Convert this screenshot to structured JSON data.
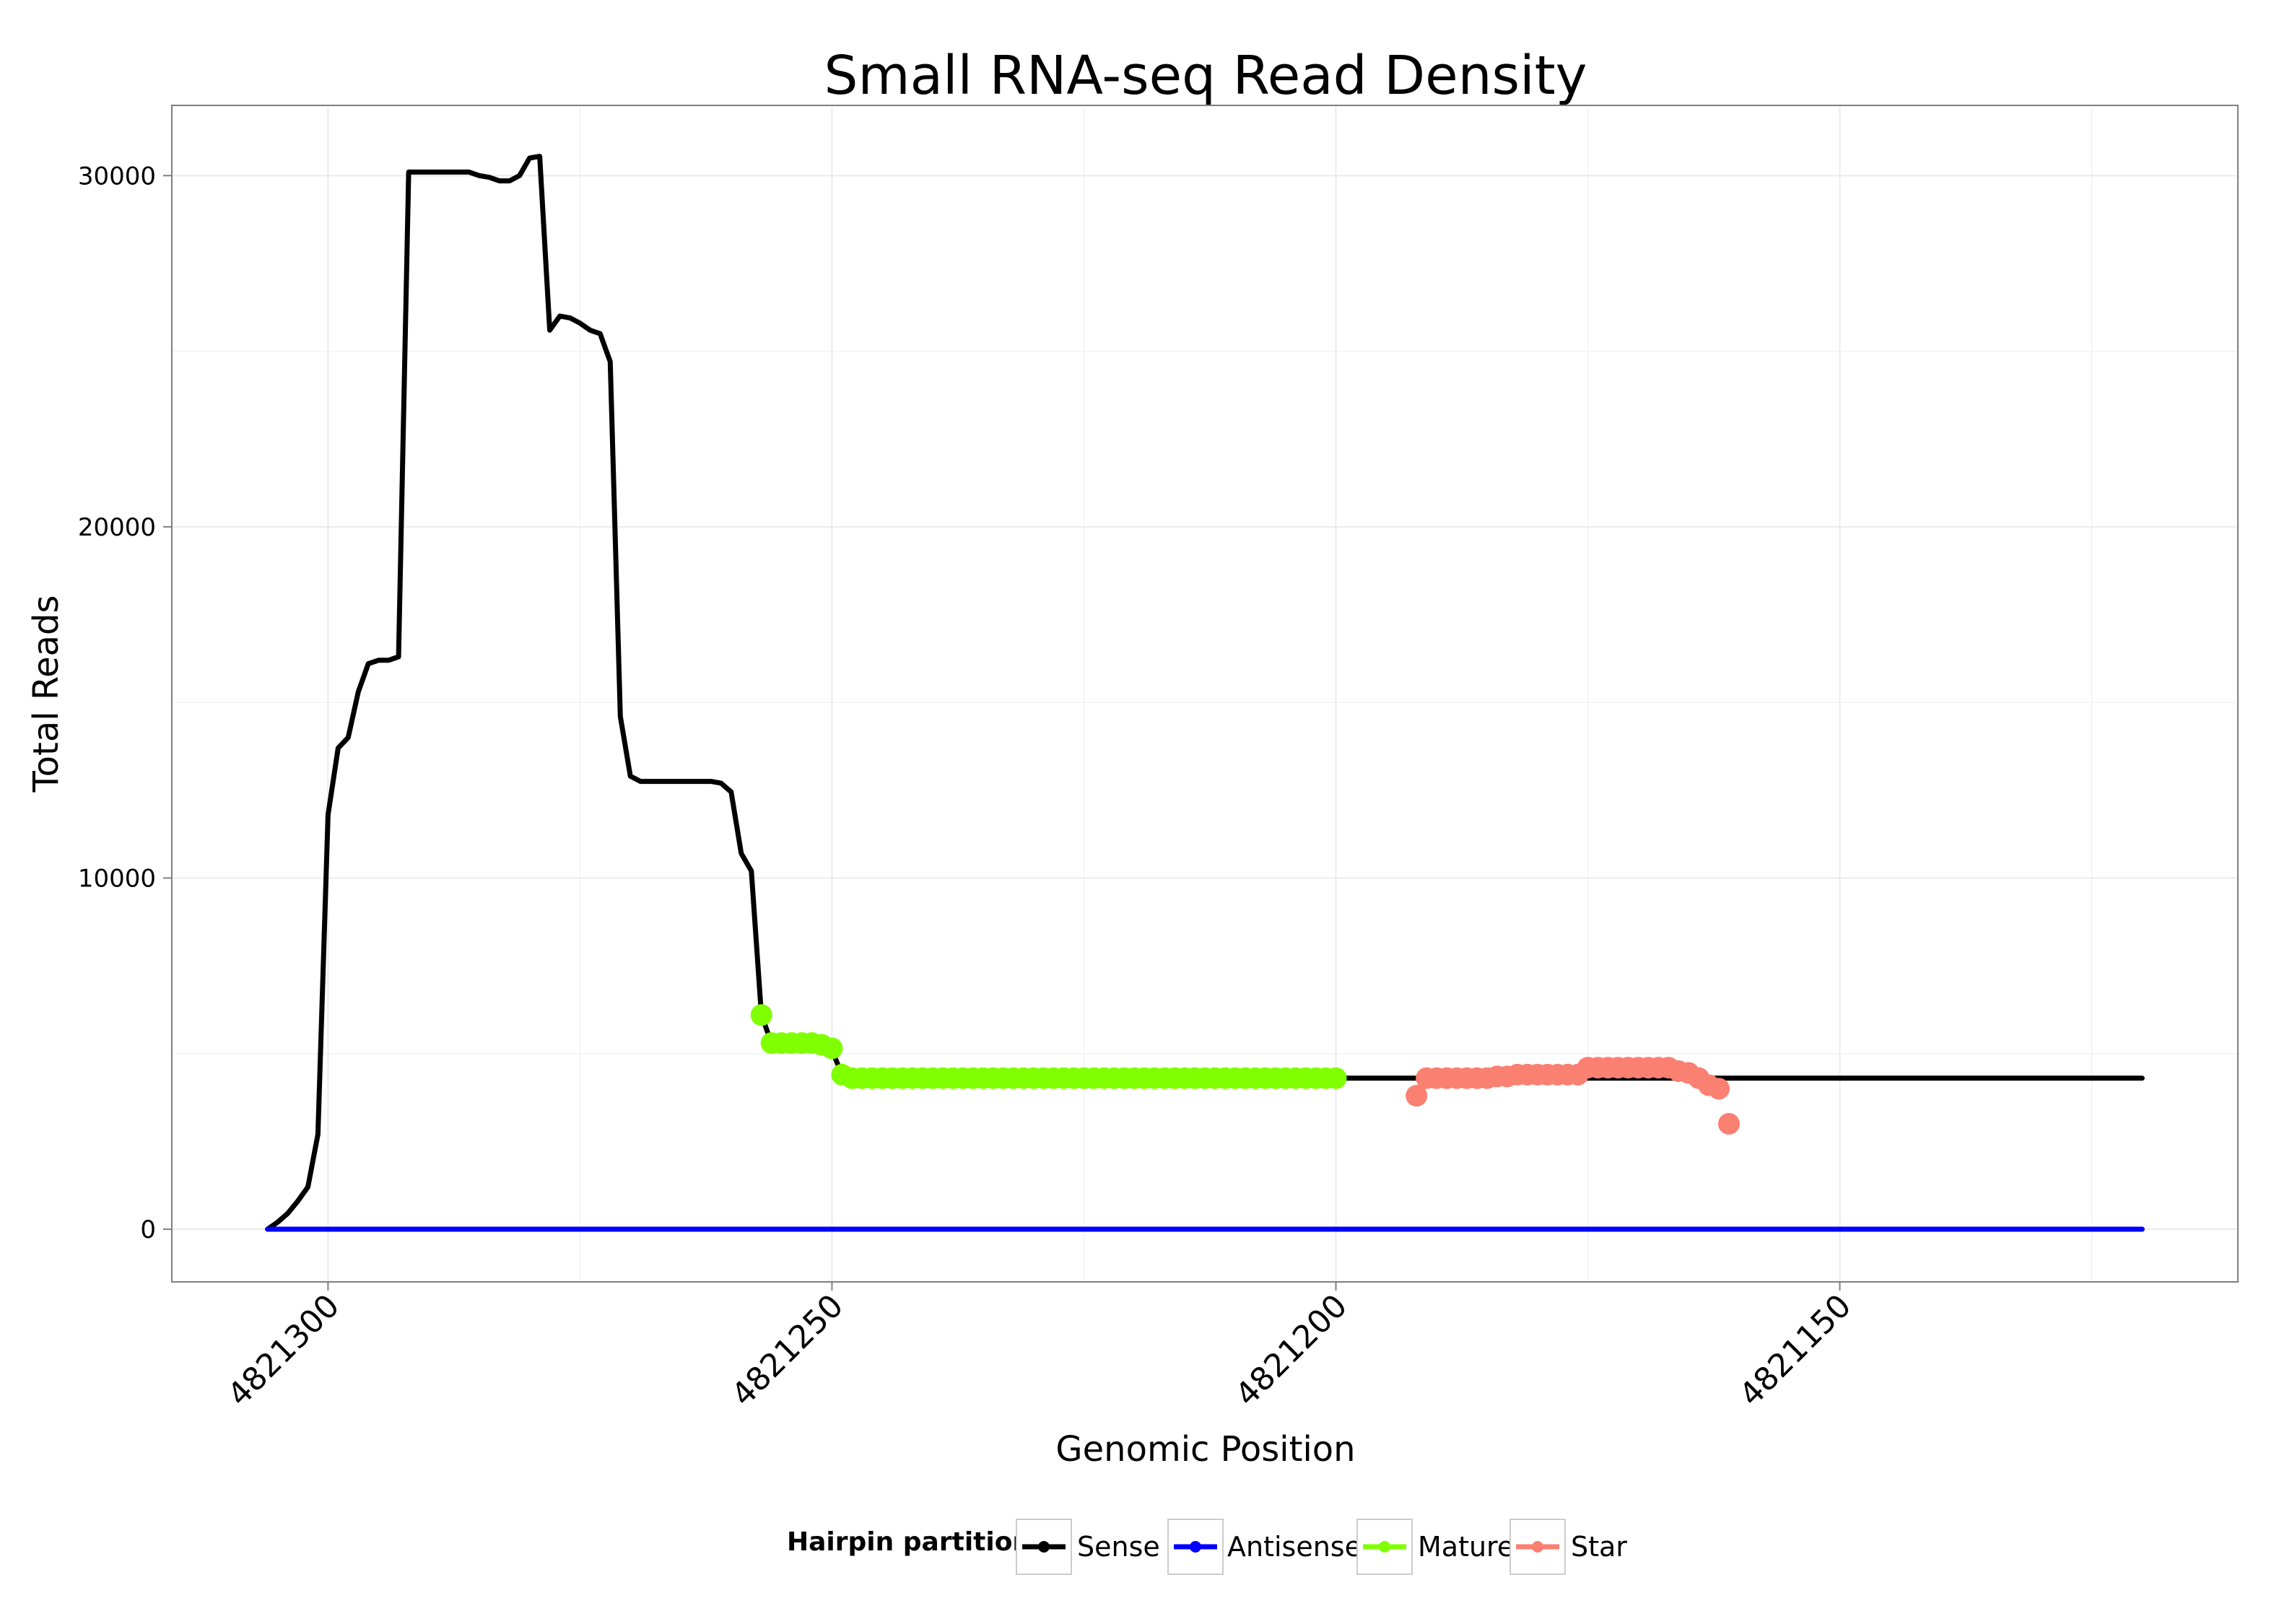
{
  "chart_data": {
    "type": "line",
    "title": "Small RNA-seq Read Density",
    "xlabel": "Genomic Position",
    "ylabel": "Total Reads",
    "xlim": [
      4821315.5,
      4821110.5
    ],
    "ylim": [
      -1500,
      32000
    ],
    "x_reversed": true,
    "x_ticks": [
      4821300,
      4821250,
      4821200,
      4821150
    ],
    "x_tick_labels": [
      "4821300",
      "4821250",
      "4821200",
      "4821150"
    ],
    "y_ticks": [
      0,
      10000,
      20000,
      30000
    ],
    "y_tick_labels": [
      "0",
      "10000",
      "20000",
      "30000"
    ],
    "grid": true,
    "legend": {
      "title": "Hairpin partition",
      "position": "bottom",
      "entries": [
        {
          "name": "Sense",
          "color": "#000000"
        },
        {
          "name": "Antisense",
          "color": "#0000ff"
        },
        {
          "name": "Mature",
          "color": "#7fff00"
        },
        {
          "name": "Star",
          "color": "#fa8072"
        }
      ]
    },
    "series": [
      {
        "name": "Sense",
        "color": "#000000",
        "kind": "line",
        "points": [
          [
            4821306,
            0
          ],
          [
            4821305,
            200
          ],
          [
            4821304,
            450
          ],
          [
            4821303,
            800
          ],
          [
            4821302,
            1200
          ],
          [
            4821301,
            2700
          ],
          [
            4821300,
            11800
          ],
          [
            4821299,
            13700
          ],
          [
            4821298,
            14000
          ],
          [
            4821297,
            15300
          ],
          [
            4821296,
            16100
          ],
          [
            4821295,
            16200
          ],
          [
            4821294,
            16200
          ],
          [
            4821293,
            16300
          ],
          [
            4821292,
            30100
          ],
          [
            4821291,
            30100
          ],
          [
            4821290,
            30100
          ],
          [
            4821289,
            30100
          ],
          [
            4821288,
            30100
          ],
          [
            4821287,
            30100
          ],
          [
            4821286,
            30100
          ],
          [
            4821285,
            30000
          ],
          [
            4821284,
            29950
          ],
          [
            4821283,
            29850
          ],
          [
            4821282,
            29850
          ],
          [
            4821281,
            30000
          ],
          [
            4821280,
            30500
          ],
          [
            4821279,
            30550
          ],
          [
            4821278,
            25600
          ],
          [
            4821277,
            26000
          ],
          [
            4821276,
            25950
          ],
          [
            4821275,
            25800
          ],
          [
            4821274,
            25600
          ],
          [
            4821273,
            25500
          ],
          [
            4821272,
            24700
          ],
          [
            4821271,
            14600
          ],
          [
            4821270,
            12900
          ],
          [
            4821269,
            12750
          ],
          [
            4821268,
            12750
          ],
          [
            4821267,
            12750
          ],
          [
            4821266,
            12750
          ],
          [
            4821265,
            12750
          ],
          [
            4821264,
            12750
          ],
          [
            4821263,
            12750
          ],
          [
            4821262,
            12750
          ],
          [
            4821261,
            12700
          ],
          [
            4821260,
            12450
          ],
          [
            4821259,
            10700
          ],
          [
            4821258,
            10200
          ],
          [
            4821257,
            6100
          ],
          [
            4821256,
            5300
          ],
          [
            4821255,
            5300
          ],
          [
            4821254,
            5300
          ],
          [
            4821253,
            5300
          ],
          [
            4821252,
            5300
          ],
          [
            4821251,
            5200
          ],
          [
            4821250,
            5100
          ],
          [
            4821249,
            4400
          ],
          [
            4821248,
            4300
          ],
          [
            4821247,
            4300
          ],
          [
            4821246,
            4300
          ],
          [
            4821245,
            4300
          ],
          [
            4821244,
            4300
          ],
          [
            4821243,
            4300
          ],
          [
            4821242,
            4300
          ],
          [
            4821241,
            4300
          ],
          [
            4821240,
            4300
          ],
          [
            4821239,
            4300
          ],
          [
            4821238,
            4300
          ],
          [
            4821237,
            4300
          ],
          [
            4821236,
            4300
          ],
          [
            4821235,
            4300
          ],
          [
            4821234,
            4300
          ],
          [
            4821233,
            4300
          ],
          [
            4821232,
            4300
          ],
          [
            4821231,
            4300
          ],
          [
            4821230,
            4300
          ],
          [
            4821229,
            4300
          ],
          [
            4821228,
            4300
          ],
          [
            4821227,
            4300
          ],
          [
            4821226,
            4300
          ],
          [
            4821225,
            4300
          ],
          [
            4821224,
            4300
          ],
          [
            4821223,
            4300
          ],
          [
            4821222,
            4300
          ],
          [
            4821221,
            4300
          ],
          [
            4821220,
            4300
          ],
          [
            4821219,
            4300
          ],
          [
            4821218,
            4300
          ],
          [
            4821217,
            4300
          ],
          [
            4821216,
            4300
          ],
          [
            4821215,
            4300
          ],
          [
            4821214,
            4300
          ],
          [
            4821213,
            4300
          ],
          [
            4821212,
            4300
          ],
          [
            4821211,
            4300
          ],
          [
            4821210,
            4300
          ],
          [
            4821209,
            4300
          ],
          [
            4821208,
            4300
          ],
          [
            4821207,
            4300
          ],
          [
            4821206,
            4300
          ],
          [
            4821205,
            4300
          ],
          [
            4821204,
            4300
          ],
          [
            4821203,
            4300
          ],
          [
            4821202,
            4300
          ],
          [
            4821201,
            4300
          ],
          [
            4821200,
            4300
          ],
          [
            4821199,
            4300
          ],
          [
            4821198,
            4300
          ],
          [
            4821197,
            4300
          ],
          [
            4821196,
            4300
          ],
          [
            4821195,
            4300
          ],
          [
            4821194,
            4300
          ],
          [
            4821193,
            4300
          ],
          [
            4821192,
            4300
          ],
          [
            4821191,
            4300
          ],
          [
            4821190,
            4300
          ],
          [
            4821189,
            4300
          ],
          [
            4821188,
            4300
          ],
          [
            4821187,
            4300
          ],
          [
            4821186,
            4300
          ],
          [
            4821185,
            4300
          ],
          [
            4821184,
            4300
          ],
          [
            4821183,
            4300
          ],
          [
            4821182,
            4300
          ],
          [
            4821181,
            4300
          ],
          [
            4821180,
            4300
          ],
          [
            4821179,
            4300
          ],
          [
            4821178,
            4300
          ],
          [
            4821177,
            4300
          ],
          [
            4821176,
            4300
          ],
          [
            4821175,
            4300
          ],
          [
            4821174,
            4300
          ],
          [
            4821173,
            4300
          ],
          [
            4821172,
            4300
          ],
          [
            4821171,
            4300
          ],
          [
            4821170,
            4300
          ],
          [
            4821169,
            4300
          ],
          [
            4821168,
            4300
          ],
          [
            4821167,
            4300
          ],
          [
            4821166,
            4300
          ],
          [
            4821165,
            4300
          ],
          [
            4821164,
            4300
          ],
          [
            4821163,
            4300
          ],
          [
            4821162,
            4300
          ],
          [
            4821161,
            4300
          ],
          [
            4821160,
            4300
          ],
          [
            4821159,
            4300
          ],
          [
            4821158,
            4300
          ],
          [
            4821157,
            4300
          ],
          [
            4821156,
            4300
          ],
          [
            4821155,
            4300
          ],
          [
            4821154,
            4300
          ],
          [
            4821153,
            4300
          ],
          [
            4821152,
            4300
          ],
          [
            4821151,
            4300
          ],
          [
            4821150,
            4300
          ],
          [
            4821149,
            4300
          ],
          [
            4821148,
            4300
          ],
          [
            4821147,
            4300
          ],
          [
            4821146,
            4300
          ],
          [
            4821145,
            4300
          ],
          [
            4821144,
            4300
          ],
          [
            4821143,
            4300
          ],
          [
            4821142,
            4300
          ],
          [
            4821141,
            4300
          ],
          [
            4821140,
            4300
          ],
          [
            4821139,
            4300
          ],
          [
            4821138,
            4300
          ],
          [
            4821137,
            4300
          ],
          [
            4821136,
            4300
          ],
          [
            4821135,
            4300
          ],
          [
            4821134,
            4300
          ],
          [
            4821133,
            4300
          ],
          [
            4821132,
            4300
          ],
          [
            4821131,
            4300
          ],
          [
            4821130,
            4300
          ],
          [
            4821129,
            4300
          ],
          [
            4821128,
            4300
          ],
          [
            4821127,
            4300
          ],
          [
            4821126,
            4300
          ],
          [
            4821125,
            4300
          ],
          [
            4821124,
            4300
          ],
          [
            4821123,
            4300
          ],
          [
            4821122,
            4300
          ],
          [
            4821121,
            4300
          ],
          [
            4821120,
            4300
          ]
        ]
      },
      {
        "name": "Antisense",
        "color": "#0000ff",
        "kind": "line",
        "points": [
          [
            4821306,
            0
          ],
          [
            4821120,
            0
          ]
        ]
      },
      {
        "name": "Mature",
        "color": "#7fff00",
        "kind": "points",
        "points": [
          [
            4821257,
            6100
          ],
          [
            4821256,
            5300
          ],
          [
            4821255,
            5300
          ],
          [
            4821254,
            5300
          ],
          [
            4821253,
            5300
          ],
          [
            4821252,
            5300
          ],
          [
            4821251,
            5250
          ],
          [
            4821250,
            5150
          ],
          [
            4821249,
            4400
          ],
          [
            4821248,
            4300
          ],
          [
            4821247,
            4300
          ],
          [
            4821246,
            4300
          ],
          [
            4821245,
            4300
          ],
          [
            4821244,
            4300
          ],
          [
            4821243,
            4300
          ],
          [
            4821242,
            4300
          ],
          [
            4821241,
            4300
          ],
          [
            4821240,
            4300
          ],
          [
            4821239,
            4300
          ],
          [
            4821238,
            4300
          ],
          [
            4821237,
            4300
          ],
          [
            4821236,
            4300
          ],
          [
            4821235,
            4300
          ],
          [
            4821234,
            4300
          ],
          [
            4821233,
            4300
          ],
          [
            4821232,
            4300
          ],
          [
            4821231,
            4300
          ],
          [
            4821230,
            4300
          ],
          [
            4821229,
            4300
          ],
          [
            4821228,
            4300
          ],
          [
            4821227,
            4300
          ],
          [
            4821226,
            4300
          ],
          [
            4821225,
            4300
          ],
          [
            4821224,
            4300
          ],
          [
            4821223,
            4300
          ],
          [
            4821222,
            4300
          ],
          [
            4821221,
            4300
          ],
          [
            4821220,
            4300
          ],
          [
            4821219,
            4300
          ],
          [
            4821218,
            4300
          ],
          [
            4821217,
            4300
          ],
          [
            4821216,
            4300
          ],
          [
            4821215,
            4300
          ],
          [
            4821214,
            4300
          ],
          [
            4821213,
            4300
          ],
          [
            4821212,
            4300
          ],
          [
            4821211,
            4300
          ],
          [
            4821210,
            4300
          ],
          [
            4821209,
            4300
          ],
          [
            4821208,
            4300
          ],
          [
            4821207,
            4300
          ],
          [
            4821206,
            4300
          ],
          [
            4821205,
            4300
          ],
          [
            4821204,
            4300
          ],
          [
            4821203,
            4300
          ],
          [
            4821202,
            4300
          ],
          [
            4821201,
            4300
          ],
          [
            4821200,
            4300
          ]
        ]
      },
      {
        "name": "Star",
        "color": "#fa8072",
        "kind": "points",
        "points": [
          [
            4821192,
            3800
          ],
          [
            4821191,
            4300
          ],
          [
            4821190,
            4300
          ],
          [
            4821189,
            4300
          ],
          [
            4821188,
            4300
          ],
          [
            4821187,
            4300
          ],
          [
            4821186,
            4300
          ],
          [
            4821185,
            4300
          ],
          [
            4821184,
            4350
          ],
          [
            4821183,
            4350
          ],
          [
            4821182,
            4400
          ],
          [
            4821181,
            4400
          ],
          [
            4821180,
            4400
          ],
          [
            4821179,
            4400
          ],
          [
            4821178,
            4400
          ],
          [
            4821177,
            4400
          ],
          [
            4821176,
            4400
          ],
          [
            4821175,
            4600
          ],
          [
            4821174,
            4600
          ],
          [
            4821173,
            4600
          ],
          [
            4821172,
            4600
          ],
          [
            4821171,
            4600
          ],
          [
            4821170,
            4600
          ],
          [
            4821169,
            4600
          ],
          [
            4821168,
            4600
          ],
          [
            4821167,
            4600
          ],
          [
            4821166,
            4500
          ],
          [
            4821165,
            4450
          ],
          [
            4821164,
            4300
          ],
          [
            4821163,
            4100
          ],
          [
            4821162,
            4000
          ],
          [
            4821161,
            3000
          ]
        ]
      }
    ]
  }
}
